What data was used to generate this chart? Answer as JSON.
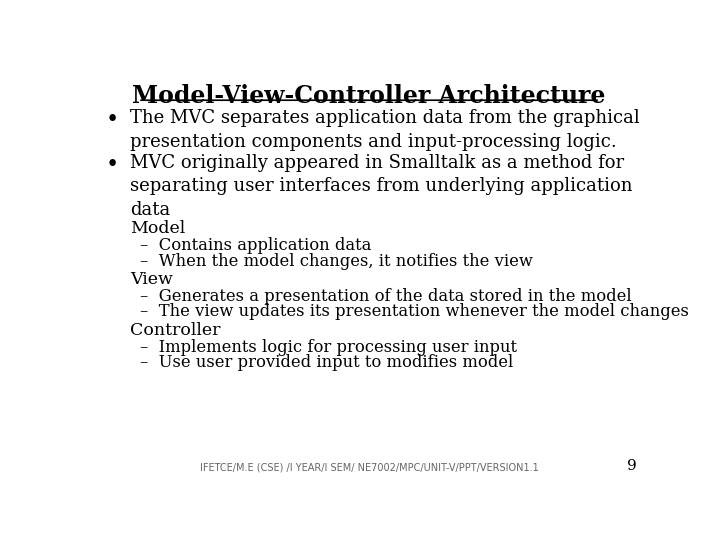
{
  "title": "Model-View-Controller Architecture",
  "background_color": "#ffffff",
  "text_color": "#000000",
  "title_fontsize": 17,
  "body_fontsize": 13.0,
  "sub_header_fontsize": 12.5,
  "item_fontsize": 11.8,
  "footer_text": "IFETCE/M.E (CSE) /I YEAR/I SEM/ NE7002/MPC/UNIT-V/PPT/VERSION1.1",
  "page_number": "9",
  "bullet_points": [
    "The MVC separates application data from the graphical\npresentation components and input-processing logic.",
    "MVC originally appeared in Smalltalk as a method for\nseparating user interfaces from underlying application\ndata"
  ],
  "sub_sections": [
    {
      "header": "Model",
      "items": [
        "–  Contains application data",
        "–  When the model changes, it notifies the view"
      ]
    },
    {
      "header": "View",
      "items": [
        "–  Generates a presentation of the data stored in the model",
        "–  The view updates its presentation whenever the model changes"
      ]
    },
    {
      "header": "Controller",
      "items": [
        "–  Implements logic for processing user input",
        "–  Use user provided input to modifies model"
      ]
    }
  ]
}
